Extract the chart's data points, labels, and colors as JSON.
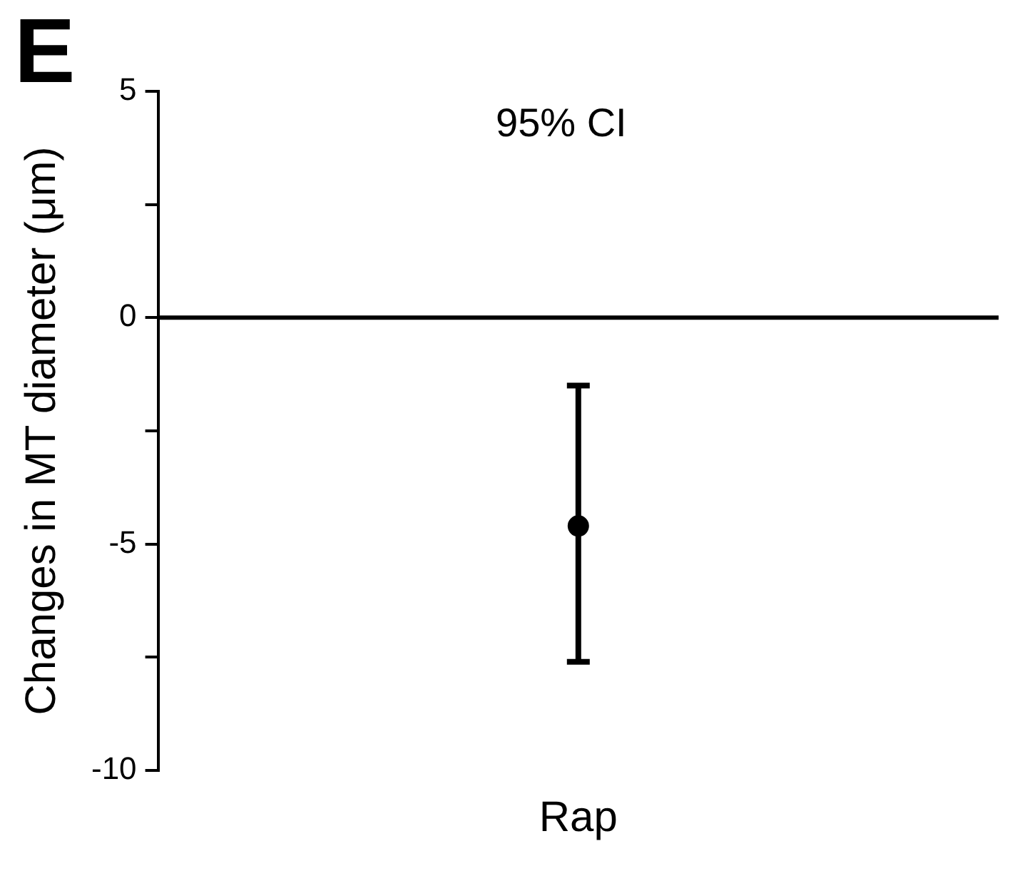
{
  "chart_data": {
    "type": "scatter",
    "xlabel": null,
    "ylabel": "Changes in MT diameter (μm)",
    "annotations": [
      "E",
      "95% CI"
    ],
    "categories": [
      "Rap"
    ],
    "values": [
      -4.6
    ],
    "errors": [
      [
        -7.6,
        -1.5
      ]
    ],
    "color": "#000000",
    "marker": "circle",
    "ylim": [
      -10,
      5
    ],
    "yticks": [
      -10,
      {
        "value": -7.5,
        "label": null
      },
      -5,
      {
        "value": -2.5,
        "label": null
      },
      0,
      {
        "value": 2.5,
        "label": null
      },
      5
    ],
    "ref_lines": [
      {
        "axis": "y",
        "value": 0,
        "color": "#000000"
      }
    ],
    "grid": false,
    "legend": false
  }
}
